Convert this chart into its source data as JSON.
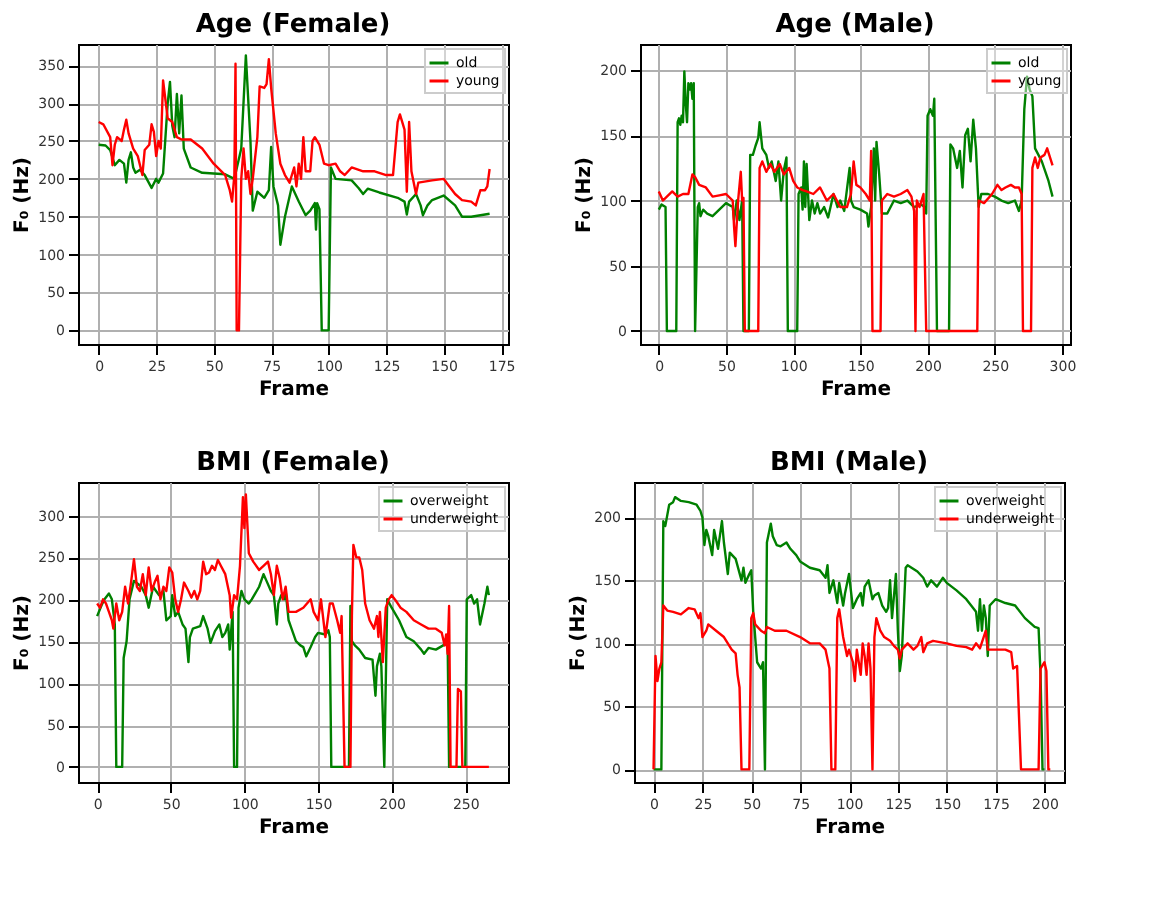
{
  "chart_data": [
    {
      "type": "line",
      "title": "Age  (Female)",
      "xlabel": "Frame",
      "ylabel": "F₀ (Hz)",
      "xlim": [
        -9,
        178
      ],
      "xticks": [
        0,
        25,
        50,
        75,
        100,
        125,
        150,
        175
      ],
      "ylim": [
        -18,
        378
      ],
      "yticks": [
        0,
        50,
        100,
        150,
        200,
        250,
        300,
        350
      ],
      "grid": true,
      "legend": "top right",
      "series": [
        {
          "name": "old",
          "color": "#008000",
          "x": [
            0,
            3,
            5,
            7,
            9,
            11,
            12,
            13,
            14,
            15,
            16,
            18,
            20,
            23,
            25,
            26,
            28,
            30,
            31,
            32,
            33,
            34,
            35,
            36,
            37,
            40,
            45,
            55,
            59,
            62,
            64,
            66,
            67,
            69,
            72,
            74,
            75,
            76,
            78,
            79,
            81,
            84,
            87,
            90,
            92,
            94,
            94.5,
            95,
            96,
            97,
            100,
            101,
            103,
            110,
            113,
            115,
            117,
            122,
            130,
            133,
            134,
            135,
            138,
            140,
            141,
            143,
            145,
            150,
            155,
            158,
            162,
            166,
            170
          ],
          "values": [
            245,
            244,
            238,
            218,
            225,
            220,
            195,
            225,
            235,
            215,
            208,
            212,
            205,
            188,
            200,
            195,
            207,
            300,
            328,
            270,
            255,
            312,
            260,
            310,
            240,
            215,
            208,
            206,
            200,
            240,
            363,
            250,
            158,
            183,
            175,
            185,
            242,
            190,
            165,
            113,
            150,
            190,
            170,
            152,
            158,
            168,
            133,
            168,
            160,
            0,
            0,
            215,
            200,
            198,
            188,
            180,
            187,
            182,
            175,
            170,
            153,
            170,
            180,
            165,
            152,
            165,
            172,
            178,
            165,
            150,
            150,
            152,
            154
          ]
        },
        {
          "name": "young",
          "color": "#ff0000",
          "x": [
            0,
            2,
            5,
            6,
            7,
            8,
            10,
            11,
            12,
            13,
            15,
            17,
            19,
            20,
            22,
            23,
            24,
            25,
            26,
            27,
            28,
            30,
            32,
            34,
            36,
            40,
            45,
            50,
            55,
            57,
            58,
            59,
            59.5,
            60,
            61,
            62,
            63,
            64,
            65,
            66,
            67,
            69,
            70,
            72,
            73,
            74,
            75,
            77,
            79,
            81,
            83,
            85,
            86,
            87,
            88,
            89,
            90,
            92,
            93,
            94,
            96,
            98,
            100,
            103,
            105,
            107,
            110,
            115,
            120,
            125,
            128,
            130,
            131,
            133,
            134,
            135,
            136,
            138,
            139,
            145,
            150,
            152,
            155,
            158,
            162,
            164,
            166,
            168,
            169,
            170
          ],
          "values": [
            275,
            272,
            255,
            218,
            245,
            255,
            250,
            265,
            278,
            260,
            240,
            230,
            205,
            238,
            245,
            272,
            262,
            230,
            250,
            240,
            330,
            280,
            275,
            255,
            252,
            252,
            240,
            220,
            205,
            185,
            170,
            205,
            352,
            0,
            0,
            200,
            240,
            200,
            210,
            180,
            200,
            255,
            322,
            320,
            325,
            358,
            320,
            260,
            220,
            205,
            195,
            215,
            190,
            220,
            200,
            255,
            210,
            210,
            250,
            255,
            245,
            220,
            218,
            220,
            210,
            205,
            215,
            210,
            210,
            205,
            205,
            275,
            285,
            265,
            183,
            275,
            210,
            180,
            195,
            198,
            200,
            192,
            180,
            172,
            170,
            165,
            185,
            185,
            190,
            213
          ]
        }
      ]
    },
    {
      "type": "line",
      "title": "Age  (Male)",
      "xlabel": "Frame",
      "ylabel": "F₀ (Hz)",
      "xlim": [
        -14,
        306
      ],
      "xticks": [
        0,
        50,
        100,
        150,
        200,
        250,
        300
      ],
      "ylim": [
        -10,
        220
      ],
      "yticks": [
        0,
        50,
        100,
        150,
        200
      ],
      "grid": true,
      "legend": "top right",
      "series": [
        {
          "name": "old",
          "color": "#008000",
          "x": [
            0,
            2,
            5,
            6,
            13,
            14,
            15,
            16,
            17,
            18,
            19,
            20,
            21,
            22,
            23,
            24,
            25,
            26,
            27,
            29,
            30,
            31,
            33,
            36,
            40,
            45,
            50,
            55,
            56,
            58,
            60,
            62,
            63,
            67,
            68,
            70,
            72,
            74,
            75,
            77,
            80,
            82,
            84,
            87,
            89,
            91,
            93,
            95,
            96,
            103,
            104,
            106,
            107,
            108,
            109,
            110,
            112,
            114,
            116,
            118,
            120,
            123,
            126,
            130,
            133,
            135,
            138,
            142,
            143,
            145,
            150,
            155,
            156,
            158,
            160,
            161,
            162,
            164,
            166,
            170,
            175,
            180,
            185,
            190,
            195,
            198,
            199,
            200,
            202,
            204,
            205,
            207,
            216,
            217,
            219,
            222,
            224,
            226,
            228,
            230,
            232,
            234,
            236,
            238,
            240,
            245,
            250,
            255,
            260,
            265,
            268,
            270,
            272,
            274,
            276,
            278,
            280,
            285,
            290,
            293
          ],
          "values": [
            93,
            97,
            95,
            0,
            0,
            160,
            163,
            158,
            165,
            160,
            199,
            175,
            160,
            190,
            185,
            190,
            178,
            190,
            0,
            95,
            98,
            88,
            93,
            90,
            88,
            93,
            98,
            95,
            85,
            100,
            85,
            100,
            0,
            0,
            135,
            135,
            142,
            148,
            160,
            140,
            135,
            125,
            130,
            115,
            130,
            100,
            123,
            133,
            0,
            0,
            105,
            110,
            93,
            130,
            95,
            128,
            85,
            100,
            90,
            98,
            90,
            95,
            87,
            105,
            95,
            100,
            92,
            125,
            100,
            95,
            93,
            90,
            80,
            95,
            140,
            100,
            145,
            120,
            90,
            90,
            100,
            98,
            100,
            95,
            97,
            95,
            90,
            165,
            170,
            165,
            178,
            0,
            0,
            143,
            140,
            125,
            138,
            110,
            150,
            155,
            130,
            162,
            140,
            95,
            105,
            105,
            103,
            100,
            98,
            100,
            92,
            100,
            170,
            195,
            185,
            180,
            140,
            130,
            115,
            103
          ]
        },
        {
          "name": "young",
          "color": "#ff0000",
          "x": [
            0,
            3,
            6,
            10,
            14,
            18,
            22,
            25,
            27,
            30,
            35,
            40,
            45,
            50,
            55,
            56,
            57,
            59,
            61,
            62,
            63,
            64,
            74,
            75,
            77,
            80,
            83,
            86,
            90,
            93,
            97,
            100,
            103,
            107,
            110,
            115,
            120,
            125,
            130,
            135,
            140,
            143,
            145,
            147,
            150,
            154,
            157,
            158,
            159,
            165,
            166,
            170,
            175,
            180,
            185,
            188,
            190,
            191,
            192,
            194,
            197,
            199,
            237,
            238,
            242,
            248,
            252,
            255,
            258,
            262,
            265,
            268,
            270,
            271,
            277,
            278,
            280,
            282,
            284,
            287,
            289,
            293
          ],
          "values": [
            107,
            100,
            103,
            107,
            103,
            105,
            105,
            120,
            118,
            112,
            110,
            103,
            104,
            105,
            100,
            80,
            65,
            100,
            122,
            100,
            102,
            0,
            0,
            125,
            130,
            122,
            128,
            122,
            128,
            120,
            125,
            115,
            110,
            108,
            107,
            105,
            110,
            100,
            105,
            95,
            95,
            105,
            130,
            112,
            110,
            105,
            100,
            138,
            0,
            0,
            100,
            105,
            103,
            105,
            108,
            103,
            92,
            0,
            100,
            95,
            105,
            0,
            0,
            100,
            98,
            105,
            112,
            108,
            110,
            112,
            110,
            110,
            105,
            0,
            0,
            125,
            133,
            125,
            133,
            135,
            140,
            127
          ]
        }
      ]
    },
    {
      "type": "line",
      "title": "BMI  (Female)",
      "xlabel": "Frame",
      "ylabel": "F₀ (Hz)",
      "xlim": [
        -13,
        279
      ],
      "xticks": [
        0,
        50,
        100,
        150,
        200,
        250
      ],
      "ylim": [
        -18,
        340
      ],
      "yticks": [
        0,
        50,
        100,
        150,
        200,
        250,
        300
      ],
      "grid": true,
      "legend": "top right",
      "series": [
        {
          "name": "overweight",
          "color": "#008000",
          "x": [
            0,
            3,
            5,
            8,
            10,
            12,
            13,
            17,
            18,
            20,
            22,
            25,
            28,
            30,
            33,
            35,
            38,
            40,
            42,
            45,
            47,
            50,
            51,
            53,
            55,
            58,
            60,
            62,
            63,
            65,
            70,
            72,
            75,
            77,
            80,
            83,
            85,
            87,
            89,
            90,
            92,
            93,
            95,
            96,
            98,
            100,
            103,
            105,
            110,
            113,
            115,
            118,
            120,
            122,
            123,
            125,
            127,
            128,
            130,
            132,
            135,
            138,
            140,
            142,
            145,
            148,
            150,
            155,
            157,
            158,
            159,
            171,
            172,
            173,
            175,
            178,
            182,
            187,
            189,
            190,
            192,
            193,
            195,
            197,
            200,
            205,
            210,
            215,
            220,
            222,
            225,
            230,
            235,
            238,
            239,
            250,
            251,
            254,
            256,
            258,
            260,
            263,
            265,
            266
          ],
          "values": [
            180,
            193,
            200,
            207,
            200,
            170,
            0,
            0,
            130,
            150,
            200,
            222,
            218,
            215,
            205,
            190,
            215,
            210,
            205,
            210,
            175,
            180,
            205,
            180,
            185,
            170,
            165,
            125,
            155,
            165,
            168,
            180,
            165,
            148,
            162,
            170,
            155,
            160,
            170,
            140,
            185,
            0,
            0,
            190,
            210,
            200,
            195,
            200,
            215,
            230,
            222,
            210,
            205,
            170,
            195,
            205,
            200,
            210,
            175,
            165,
            150,
            145,
            143,
            132,
            143,
            155,
            160,
            158,
            163,
            155,
            0,
            0,
            192,
            150,
            145,
            140,
            130,
            128,
            85,
            120,
            135,
            120,
            0,
            200,
            190,
            175,
            155,
            150,
            140,
            135,
            142,
            140,
            145,
            150,
            0,
            0,
            200,
            205,
            195,
            200,
            170,
            195,
            215,
            205
          ]
        },
        {
          "name": "underweight",
          "color": "#ff0000",
          "x": [
            0,
            2,
            4,
            6,
            8,
            10,
            11,
            13,
            15,
            17,
            19,
            21,
            23,
            25,
            27,
            29,
            31,
            33,
            35,
            37,
            39,
            41,
            43,
            45,
            47,
            49,
            51,
            53,
            55,
            57,
            59,
            62,
            64,
            66,
            68,
            70,
            72,
            74,
            76,
            78,
            80,
            82,
            84,
            87,
            90,
            91,
            93,
            95,
            97,
            99,
            100,
            101,
            103,
            106,
            110,
            113,
            116,
            118,
            120,
            122,
            124,
            126,
            128,
            130,
            135,
            140,
            145,
            147,
            150,
            152,
            155,
            158,
            160,
            163,
            165,
            166,
            168,
            172,
            173,
            174,
            176,
            178,
            180,
            182,
            185,
            188,
            190,
            191,
            192,
            194,
            196,
            198,
            200,
            203,
            206,
            210,
            215,
            220,
            225,
            230,
            234,
            236,
            237,
            238,
            239,
            240,
            244,
            245,
            247,
            248,
            266
          ],
          "values": [
            195,
            190,
            200,
            195,
            185,
            175,
            165,
            195,
            175,
            185,
            215,
            195,
            220,
            248,
            215,
            210,
            230,
            205,
            238,
            210,
            220,
            228,
            200,
            215,
            210,
            238,
            232,
            200,
            185,
            200,
            220,
            210,
            202,
            210,
            200,
            210,
            245,
            230,
            232,
            240,
            235,
            247,
            240,
            230,
            205,
            178,
            205,
            200,
            240,
            322,
            285,
            325,
            255,
            245,
            235,
            240,
            245,
            230,
            205,
            240,
            225,
            200,
            215,
            185,
            185,
            190,
            200,
            185,
            175,
            200,
            155,
            195,
            195,
            175,
            160,
            180,
            0,
            0,
            180,
            265,
            250,
            250,
            235,
            195,
            175,
            165,
            180,
            155,
            185,
            125,
            190,
            200,
            205,
            198,
            190,
            185,
            175,
            170,
            165,
            165,
            160,
            145,
            158,
            135,
            192,
            0,
            0,
            93,
            90,
            0,
            0
          ]
        }
      ]
    },
    {
      "type": "line",
      "title": "BMI  (Male)",
      "xlabel": "Frame",
      "ylabel": "F₀ (Hz)",
      "xlim": [
        -10,
        210
      ],
      "xticks": [
        0,
        25,
        50,
        75,
        100,
        125,
        150,
        175,
        200
      ],
      "ylim": [
        -10,
        228
      ],
      "yticks": [
        0,
        50,
        100,
        150,
        200
      ],
      "grid": true,
      "legend": "top right",
      "series": [
        {
          "name": "overweight",
          "color": "#008000",
          "x": [
            0,
            4,
            5,
            6,
            8,
            10,
            11,
            14,
            18,
            22,
            24,
            25,
            26,
            27,
            28,
            30,
            31,
            33,
            35,
            36,
            38,
            39,
            42,
            45,
            46,
            47,
            49,
            50,
            51,
            53,
            55,
            56,
            57,
            58,
            60,
            61,
            63,
            65,
            68,
            70,
            73,
            75,
            80,
            85,
            88,
            89,
            90,
            92,
            94,
            95,
            97,
            98,
            100,
            102,
            104,
            106,
            107,
            108,
            110,
            112,
            113,
            115,
            117,
            119,
            120,
            121,
            122,
            124,
            125,
            126,
            127,
            129,
            130,
            135,
            138,
            140,
            142,
            145,
            148,
            150,
            155,
            160,
            165,
            166,
            167,
            168,
            169,
            170,
            171,
            172,
            175,
            180,
            185,
            190,
            195,
            197,
            198,
            199,
            200
          ],
          "values": [
            0,
            0,
            197,
            193,
            210,
            212,
            216,
            213,
            212,
            210,
            205,
            200,
            178,
            190,
            185,
            170,
            190,
            175,
            197,
            180,
            155,
            172,
            167,
            150,
            160,
            148,
            155,
            158,
            125,
            85,
            80,
            85,
            0,
            180,
            195,
            185,
            178,
            177,
            180,
            175,
            170,
            165,
            160,
            158,
            152,
            162,
            140,
            150,
            132,
            148,
            130,
            140,
            155,
            128,
            135,
            140,
            130,
            145,
            150,
            135,
            138,
            140,
            130,
            125,
            128,
            150,
            120,
            155,
            110,
            78,
            90,
            160,
            162,
            157,
            152,
            145,
            150,
            145,
            152,
            148,
            142,
            135,
            125,
            110,
            135,
            110,
            130,
            120,
            90,
            130,
            135,
            132,
            130,
            120,
            113,
            112,
            75,
            0,
            0
          ]
        },
        {
          "name": "underweight",
          "color": "#ff0000",
          "x": [
            0,
            1,
            2,
            3,
            4,
            5,
            7,
            10,
            14,
            18,
            21,
            23,
            24,
            25,
            27,
            28,
            32,
            36,
            40,
            42,
            43,
            44,
            45,
            49,
            50,
            51,
            52,
            55,
            57,
            58,
            62,
            68,
            75,
            80,
            85,
            88,
            90,
            91,
            93,
            94,
            95,
            97,
            99,
            100,
            102,
            103,
            104,
            105,
            106,
            107,
            108,
            109,
            110,
            111,
            112,
            113,
            114,
            116,
            118,
            121,
            123,
            125,
            126,
            127,
            130,
            133,
            135,
            137,
            138,
            140,
            143,
            150,
            155,
            160,
            163,
            165,
            167,
            170,
            171,
            175,
            180,
            183,
            184,
            186,
            188,
            197,
            198,
            200,
            201,
            202,
            203
          ],
          "values": [
            0,
            90,
            70,
            80,
            85,
            130,
            126,
            125,
            123,
            128,
            127,
            120,
            124,
            105,
            110,
            115,
            110,
            105,
            95,
            92,
            75,
            65,
            0,
            0,
            120,
            124,
            115,
            110,
            108,
            113,
            110,
            110,
            105,
            100,
            100,
            95,
            80,
            0,
            0,
            120,
            127,
            105,
            90,
            95,
            85,
            70,
            95,
            85,
            75,
            100,
            90,
            75,
            100,
            80,
            0,
            105,
            120,
            110,
            105,
            102,
            98,
            95,
            88,
            95,
            100,
            95,
            98,
            105,
            93,
            100,
            102,
            100,
            98,
            97,
            95,
            100,
            96,
            110,
            95,
            95,
            95,
            93,
            80,
            82,
            0,
            0,
            80,
            85,
            78,
            0,
            0
          ]
        }
      ]
    }
  ]
}
